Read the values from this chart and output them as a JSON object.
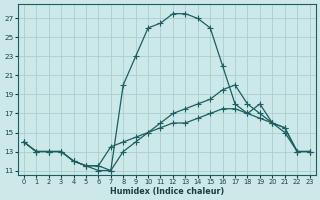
{
  "xlabel": "Humidex (Indice chaleur)",
  "bg_color": "#cde8e8",
  "grid_color": "#aacece",
  "line_color": "#1a6060",
  "xlim": [
    -0.5,
    23.5
  ],
  "ylim": [
    10.5,
    28.5
  ],
  "xticks": [
    0,
    1,
    2,
    3,
    4,
    5,
    6,
    7,
    8,
    9,
    10,
    11,
    12,
    13,
    14,
    15,
    16,
    17,
    18,
    19,
    20,
    21,
    22,
    23
  ],
  "yticks": [
    11,
    13,
    15,
    17,
    19,
    21,
    23,
    25,
    27
  ],
  "curve_big": {
    "x": [
      0,
      1,
      2,
      3,
      4,
      5,
      6,
      7,
      8,
      9,
      10,
      11,
      12,
      13,
      14,
      15,
      16,
      17,
      18,
      19,
      20,
      21,
      22,
      23
    ],
    "y": [
      14,
      13,
      13,
      13,
      12,
      11.5,
      11,
      11,
      20,
      23,
      26,
      26.5,
      27.5,
      27.5,
      27,
      26,
      22,
      18,
      17,
      18,
      16,
      15.5,
      13,
      13
    ]
  },
  "curve_upper": {
    "x": [
      0,
      1,
      2,
      3,
      4,
      5,
      6,
      7,
      8,
      9,
      10,
      11,
      12,
      13,
      14,
      15,
      16,
      17,
      18,
      19,
      20,
      21,
      22,
      23
    ],
    "y": [
      14,
      13,
      13,
      13,
      12,
      11.5,
      11.5,
      11,
      13,
      14,
      15,
      16,
      17,
      17.5,
      18,
      18.5,
      19.5,
      20,
      18,
      17,
      16,
      15.5,
      13,
      13
    ]
  },
  "curve_lower": {
    "x": [
      0,
      1,
      2,
      3,
      4,
      5,
      6,
      7,
      8,
      9,
      10,
      11,
      12,
      13,
      14,
      15,
      16,
      17,
      18,
      19,
      20,
      21,
      22,
      23
    ],
    "y": [
      14,
      13,
      13,
      13,
      12,
      11.5,
      11.5,
      13.5,
      14,
      14.5,
      15,
      15.5,
      16,
      16,
      16.5,
      17,
      17.5,
      17.5,
      17,
      16.5,
      16,
      15,
      13,
      13
    ]
  }
}
